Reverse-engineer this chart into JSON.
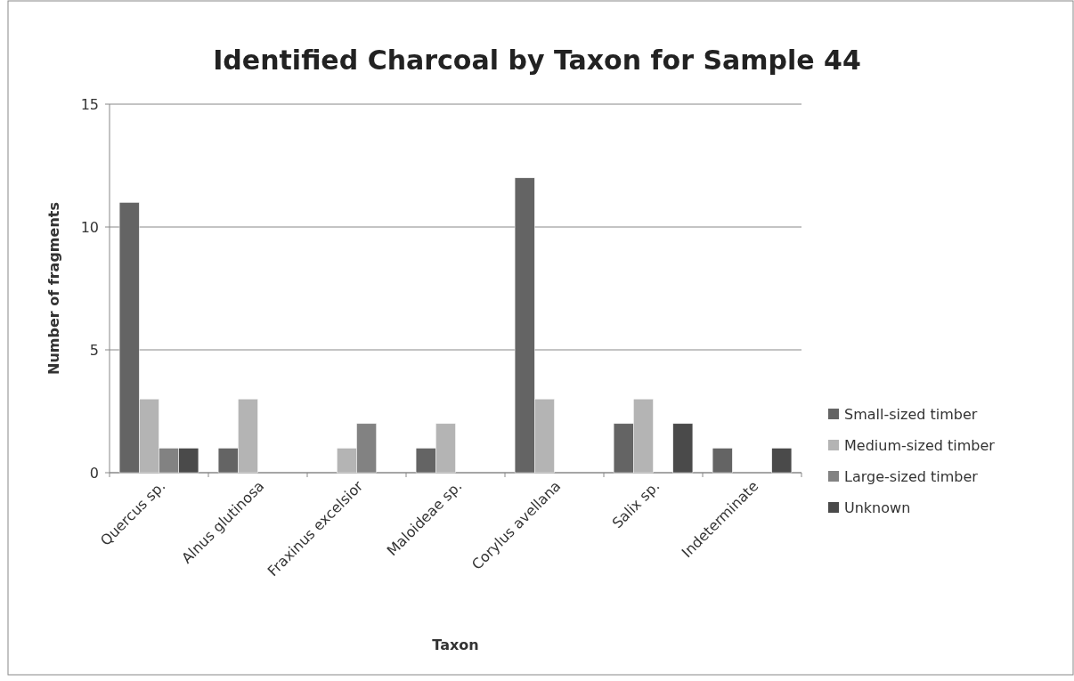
{
  "chart_data": {
    "type": "bar",
    "title": "Identified Charcoal by Taxon for Sample 44",
    "xlabel": "Taxon",
    "ylabel": "Number of fragments",
    "categories": [
      "Quercus sp.",
      "Alnus glutinosa",
      "Fraxinus excelsior",
      "Maloideae sp.",
      "Corylus avellana",
      "Salix sp.",
      "Indeterminate"
    ],
    "series": [
      {
        "name": "Small-sized timber",
        "color": "#646464",
        "values": [
          11,
          1,
          0,
          1,
          12,
          2,
          1
        ]
      },
      {
        "name": "Medium-sized timber",
        "color": "#b4b4b4",
        "values": [
          3,
          3,
          1,
          2,
          3,
          3,
          0
        ]
      },
      {
        "name": "Large-sized timber",
        "color": "#828282",
        "values": [
          1,
          0,
          2,
          0,
          0,
          0,
          0
        ]
      },
      {
        "name": "Unknown",
        "color": "#4a4a4a",
        "values": [
          1,
          0,
          0,
          0,
          0,
          2,
          1
        ]
      }
    ],
    "ylim": [
      0,
      15
    ],
    "yticks": [
      0,
      5,
      10,
      15
    ],
    "grid": "y",
    "legend": "right"
  }
}
